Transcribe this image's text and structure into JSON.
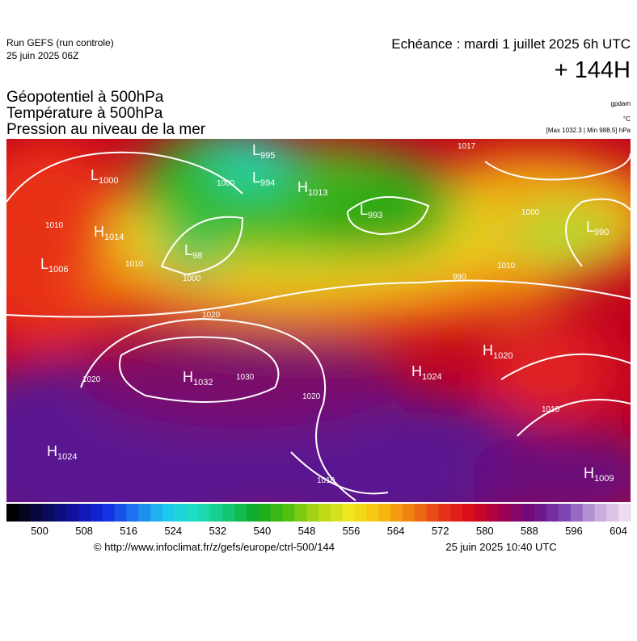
{
  "header": {
    "run": "Run GEFS (run controle)",
    "run_date": "25 juin 2025 06Z",
    "echeance": "Echéance : mardi 1 juillet 2025 6h UTC",
    "lead": "+ 144H",
    "titles": [
      "Géopotentiel à 500hPa",
      "Température à 500hPa",
      "Pression au niveau de la mer"
    ],
    "units": [
      "gpdam",
      "°C",
      "[Max 1032.3 | Min 988.5] hPa"
    ]
  },
  "map": {
    "centers": [
      {
        "letter": "L",
        "value": "995"
      },
      {
        "letter": "L",
        "value": "1000"
      },
      {
        "letter": "L",
        "value": "994"
      },
      {
        "letter": "H",
        "value": "1013"
      },
      {
        "letter": "L",
        "value": "993"
      },
      {
        "letter": "H",
        "value": "1014"
      },
      {
        "letter": "L",
        "value": "98"
      },
      {
        "letter": "L",
        "value": "1006"
      },
      {
        "letter": "L",
        "value": "990"
      },
      {
        "letter": "H",
        "value": "1020"
      },
      {
        "letter": "H",
        "value": "1032"
      },
      {
        "letter": "H",
        "value": "1024"
      },
      {
        "letter": "H",
        "value": "1024"
      },
      {
        "letter": "H",
        "value": "1009"
      }
    ],
    "isobar_labels": [
      "1017",
      "1010",
      "1000",
      "1010",
      "1000",
      "1020",
      "1020",
      "1030",
      "1020",
      "1010",
      "1010",
      "1010",
      "1000",
      "990"
    ]
  },
  "colorbar": {
    "ticks": [
      500,
      508,
      516,
      524,
      532,
      540,
      548,
      556,
      564,
      572,
      580,
      588,
      596,
      604
    ]
  },
  "footer": {
    "source": "© http://www.infoclimat.fr/z/gefs/europe/ctrl-500/144",
    "issued": "25 juin 2025 10:40 UTC"
  }
}
